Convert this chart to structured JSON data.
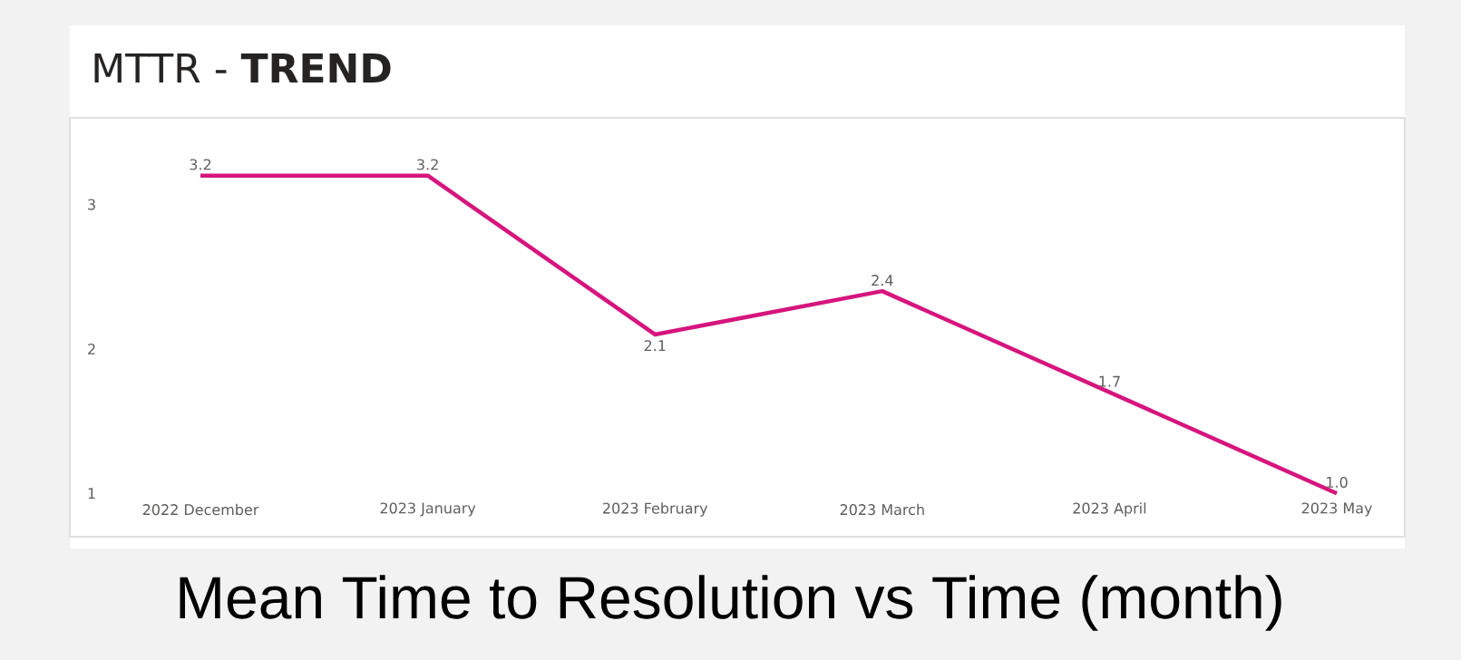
{
  "chart_data": {
    "type": "line",
    "title": "MTTR - **TREND**",
    "categories": [
      "2022 December",
      "2023 January",
      "2023 February",
      "2023 March",
      "2023 April",
      "2023 May"
    ],
    "values": [
      3.2,
      3.2,
      2.1,
      2.4,
      1.7,
      1.0
    ],
    "value_labels": [
      "3.2",
      "3.2",
      "2.1",
      "2.4",
      "1.7",
      "1.0"
    ],
    "color": "#d6157d",
    "ylim": [
      0.7,
      3.6
    ],
    "yticks": [
      1,
      2,
      3
    ],
    "grid": false,
    "marker": "none",
    "line_style": "solid",
    "annotations": [
      "Mean Time to Resolution vs Time (month)"
    ]
  }
}
